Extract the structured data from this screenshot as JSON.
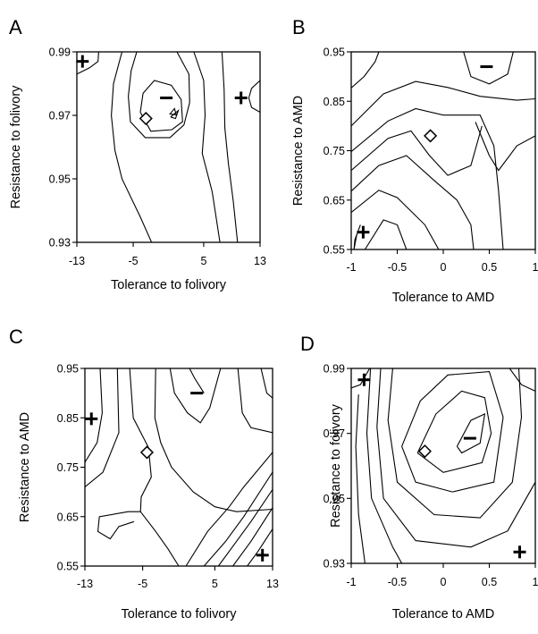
{
  "chart_data": [
    {
      "panel": "A",
      "type": "contour",
      "xlabel": "Tolerance to folivory",
      "ylabel": "Resistance to folivory",
      "xlim": [
        -13,
        13
      ],
      "ylim": [
        0.93,
        0.99
      ],
      "xticks": [
        "-13",
        "-5",
        "5",
        "13"
      ],
      "xtick_values": [
        -13,
        -5,
        5,
        13
      ],
      "yticks": [
        "0.93",
        "0.95",
        "0.97",
        "0.99"
      ],
      "ytick_values": [
        0.93,
        0.95,
        0.97,
        0.99
      ],
      "markers": [
        {
          "symbol": "+",
          "label": "+",
          "x": -12.2,
          "y": 0.987
        },
        {
          "symbol": "+",
          "label": "+",
          "x": 10.3,
          "y": 0.9755
        },
        {
          "symbol": "-",
          "label": "−",
          "x": -0.3,
          "y": 0.9755
        },
        {
          "symbol": "diamond",
          "x": -3.2,
          "y": 0.969
        },
        {
          "symbol": "triangle",
          "x": 0.6,
          "y": 0.971
        }
      ],
      "contours": [
        [
          [
            -13,
            0.983
          ],
          [
            -11.2,
            0.985
          ],
          [
            -10,
            0.987
          ],
          [
            -9.9,
            0.99
          ]
        ],
        [
          [
            -4.5,
            0.99
          ],
          [
            -5.3,
            0.984
          ],
          [
            -5.7,
            0.976
          ],
          [
            -5.4,
            0.968
          ],
          [
            -3.3,
            0.963
          ],
          [
            0.2,
            0.963
          ],
          [
            2.2,
            0.967
          ],
          [
            3,
            0.974
          ],
          [
            2.9,
            0.983
          ],
          [
            1.2,
            0.99
          ]
        ],
        [
          [
            -4,
            0.971
          ],
          [
            -3.6,
            0.977
          ],
          [
            -2,
            0.981
          ],
          [
            0.4,
            0.9795
          ],
          [
            1.8,
            0.975
          ],
          [
            2,
            0.968
          ],
          [
            0.5,
            0.9655
          ],
          [
            -2.5,
            0.965
          ],
          [
            -4,
            0.971
          ]
        ],
        [
          [
            0.3,
            0.9695
          ],
          [
            1.4,
            0.9715
          ],
          [
            1,
            0.969
          ],
          [
            0.3,
            0.9695
          ]
        ],
        [
          [
            3.6,
            0.99
          ],
          [
            5,
            0.981
          ],
          [
            5.2,
            0.97
          ],
          [
            4.8,
            0.958
          ],
          [
            6.2,
            0.946
          ],
          [
            7.3,
            0.93
          ]
        ],
        [
          [
            7.6,
            0.99
          ],
          [
            7.9,
            0.978
          ],
          [
            8,
            0.966
          ],
          [
            8.5,
            0.955
          ],
          [
            9.2,
            0.943
          ],
          [
            9.8,
            0.93
          ]
        ],
        [
          [
            13,
            0.981
          ],
          [
            11.8,
            0.9785
          ],
          [
            11.4,
            0.9755
          ],
          [
            11.8,
            0.9725
          ],
          [
            13,
            0.971
          ]
        ],
        [
          [
            -6.6,
            0.99
          ],
          [
            -7.8,
            0.98
          ],
          [
            -8.1,
            0.97
          ],
          [
            -7.6,
            0.959
          ],
          [
            -6.6,
            0.95
          ],
          [
            -4,
            0.938
          ],
          [
            -2.4,
            0.93
          ]
        ]
      ]
    },
    {
      "panel": "B",
      "type": "contour",
      "xlabel": "Tolerance to AMD",
      "ylabel": "Resistance to AMD",
      "xlim": [
        -1,
        1
      ],
      "ylim": [
        0.55,
        0.95
      ],
      "xticks": [
        "-1",
        "-0.5",
        "0",
        "0.5",
        "1"
      ],
      "xtick_values": [
        -1,
        -0.5,
        0,
        0.5,
        1
      ],
      "yticks": [
        "0.55",
        "0.65",
        "0.75",
        "0.85",
        "0.95"
      ],
      "ytick_values": [
        0.55,
        0.65,
        0.75,
        0.85,
        0.95
      ],
      "markers": [
        {
          "symbol": "-",
          "label": "−",
          "x": 0.47,
          "y": 0.92
        },
        {
          "symbol": "diamond",
          "x": -0.14,
          "y": 0.78
        },
        {
          "symbol": "+",
          "label": "+",
          "x": -0.87,
          "y": 0.585
        }
      ],
      "contours": [
        [
          [
            -1,
            0.877
          ],
          [
            -0.86,
            0.9
          ],
          [
            -0.74,
            0.93
          ],
          [
            -0.7,
            0.95
          ]
        ],
        [
          [
            0.22,
            0.95
          ],
          [
            0.3,
            0.9
          ],
          [
            0.5,
            0.885
          ],
          [
            0.7,
            0.905
          ],
          [
            0.76,
            0.95
          ]
        ],
        [
          [
            -0.97,
            0.55
          ],
          [
            -0.96,
            0.57
          ],
          [
            -0.9,
            0.6
          ],
          [
            -0.94,
            0.58
          ],
          [
            -0.97,
            0.55
          ]
        ],
        [
          [
            -1,
            0.8
          ],
          [
            -0.65,
            0.865
          ],
          [
            -0.3,
            0.89
          ],
          [
            0.05,
            0.878
          ],
          [
            0.4,
            0.86
          ],
          [
            0.8,
            0.852
          ],
          [
            1,
            0.855
          ]
        ],
        [
          [
            -1,
            0.748
          ],
          [
            -0.6,
            0.81
          ],
          [
            -0.3,
            0.835
          ],
          [
            0,
            0.822
          ],
          [
            0.4,
            0.822
          ],
          [
            0.55,
            0.76
          ],
          [
            0.6,
            0.67
          ],
          [
            0.65,
            0.55
          ]
        ],
        [
          [
            0.35,
            0.808
          ],
          [
            0.5,
            0.74
          ],
          [
            0.6,
            0.71
          ],
          [
            0.8,
            0.76
          ],
          [
            1,
            0.78
          ]
        ],
        [
          [
            -1,
            0.71
          ],
          [
            -0.6,
            0.775
          ],
          [
            -0.35,
            0.79
          ],
          [
            -0.15,
            0.74
          ],
          [
            0.05,
            0.7
          ],
          [
            0.3,
            0.72
          ],
          [
            0.42,
            0.8
          ]
        ],
        [
          [
            -1,
            0.668
          ],
          [
            -0.7,
            0.72
          ],
          [
            -0.4,
            0.74
          ],
          [
            -0.1,
            0.69
          ],
          [
            0.15,
            0.65
          ],
          [
            0.3,
            0.6
          ],
          [
            0.33,
            0.55
          ]
        ],
        [
          [
            -1,
            0.625
          ],
          [
            -0.7,
            0.67
          ],
          [
            -0.5,
            0.655
          ],
          [
            -0.2,
            0.6
          ],
          [
            -0.05,
            0.55
          ]
        ],
        [
          [
            -0.85,
            0.55
          ],
          [
            -0.65,
            0.61
          ],
          [
            -0.5,
            0.6
          ],
          [
            -0.4,
            0.55
          ]
        ]
      ]
    },
    {
      "panel": "C",
      "type": "contour",
      "xlabel": "Tolerance to folivory",
      "ylabel": "Resistance to AMD",
      "xlim": [
        -13,
        13
      ],
      "ylim": [
        0.55,
        0.95
      ],
      "xticks": [
        "-13",
        "-5",
        "5",
        "13"
      ],
      "xtick_values": [
        -13,
        -5,
        5,
        13
      ],
      "yticks": [
        "0.55",
        "0.65",
        "0.75",
        "0.85",
        "0.95"
      ],
      "ytick_values": [
        0.55,
        0.65,
        0.75,
        0.85,
        0.95
      ],
      "markers": [
        {
          "symbol": "+",
          "label": "+",
          "x": -12.1,
          "y": 0.848
        },
        {
          "symbol": "-",
          "label": "−",
          "x": 2.5,
          "y": 0.9
        },
        {
          "symbol": "diamond",
          "x": -4.4,
          "y": 0.78
        },
        {
          "symbol": "+",
          "label": "+",
          "x": 11.6,
          "y": 0.572
        }
      ],
      "contours": [
        [
          [
            -13,
            0.76
          ],
          [
            -11.3,
            0.8
          ],
          [
            -10.6,
            0.86
          ],
          [
            -10.9,
            0.95
          ]
        ],
        [
          [
            -1.2,
            0.95
          ],
          [
            -0.6,
            0.9
          ],
          [
            1.2,
            0.86
          ],
          [
            3,
            0.84
          ],
          [
            4.3,
            0.87
          ],
          [
            5.8,
            0.95
          ]
        ],
        [
          [
            -13,
            0.71
          ],
          [
            -10.5,
            0.74
          ],
          [
            -8.3,
            0.82
          ],
          [
            -8.5,
            0.95
          ]
        ],
        [
          [
            -6.8,
            0.95
          ],
          [
            -6.3,
            0.85
          ],
          [
            -4.2,
            0.79
          ],
          [
            -3.8,
            0.73
          ],
          [
            -5.2,
            0.69
          ],
          [
            -5.3,
            0.66
          ],
          [
            -7,
            0.66
          ],
          [
            -11,
            0.65
          ],
          [
            -11.2,
            0.62
          ],
          [
            -9.5,
            0.605
          ],
          [
            -8.3,
            0.63
          ],
          [
            -6.2,
            0.64
          ]
        ],
        [
          [
            -3.2,
            0.95
          ],
          [
            -3.3,
            0.85
          ],
          [
            -2.5,
            0.8
          ],
          [
            -1,
            0.75
          ],
          [
            2,
            0.7
          ],
          [
            5,
            0.67
          ],
          [
            8,
            0.66
          ],
          [
            13,
            0.665
          ]
        ],
        [
          [
            1.5,
            0.95
          ],
          [
            2.2,
            0.93
          ],
          [
            3.5,
            0.9
          ]
        ],
        [
          [
            -5.3,
            0.66
          ],
          [
            -3.2,
            0.62
          ],
          [
            -1.5,
            0.585
          ],
          [
            0,
            0.55
          ]
        ],
        [
          [
            1,
            0.55
          ],
          [
            4,
            0.62
          ],
          [
            7,
            0.67
          ],
          [
            9,
            0.71
          ],
          [
            13,
            0.78
          ]
        ],
        [
          [
            3.5,
            0.55
          ],
          [
            6.5,
            0.6
          ],
          [
            9,
            0.65
          ],
          [
            13,
            0.74
          ]
        ],
        [
          [
            5.5,
            0.55
          ],
          [
            8,
            0.6
          ],
          [
            10,
            0.64
          ],
          [
            13,
            0.705
          ]
        ],
        [
          [
            7.5,
            0.55
          ],
          [
            10,
            0.6
          ],
          [
            13,
            0.668
          ]
        ],
        [
          [
            9.5,
            0.55
          ],
          [
            11,
            0.58
          ],
          [
            13,
            0.625
          ]
        ],
        [
          [
            8.2,
            0.95
          ],
          [
            8.8,
            0.86
          ],
          [
            10,
            0.83
          ],
          [
            13,
            0.82
          ]
        ],
        [
          [
            11.4,
            0.95
          ],
          [
            12.2,
            0.9
          ],
          [
            13,
            0.89
          ]
        ]
      ]
    },
    {
      "panel": "D",
      "type": "contour",
      "xlabel": "Tolerance to AMD",
      "ylabel": "Resistance to folivory",
      "xlim": [
        -1,
        1
      ],
      "ylim": [
        0.93,
        0.99
      ],
      "xticks": [
        "-1",
        "-0.5",
        "0",
        "0.5",
        "1"
      ],
      "xtick_values": [
        -1,
        -0.5,
        0,
        0.5,
        1
      ],
      "yticks": [
        "0.93",
        "0.95",
        "0.97",
        "0.99"
      ],
      "ytick_values": [
        0.93,
        0.95,
        0.97,
        0.99
      ],
      "markers": [
        {
          "symbol": "+",
          "label": "+",
          "x": -0.86,
          "y": 0.9865
        },
        {
          "symbol": "-",
          "label": "−",
          "x": 0.29,
          "y": 0.9685
        },
        {
          "symbol": "diamond",
          "x": -0.2,
          "y": 0.9645
        },
        {
          "symbol": "+",
          "label": "+",
          "x": 0.83,
          "y": 0.9335
        }
      ],
      "contours": [
        [
          [
            -1,
            0.984
          ],
          [
            -0.9,
            0.985
          ],
          [
            -0.8,
            0.99
          ]
        ],
        [
          [
            0.15,
            0.966
          ],
          [
            0.3,
            0.974
          ],
          [
            0.45,
            0.976
          ],
          [
            0.4,
            0.967
          ],
          [
            0.2,
            0.964
          ],
          [
            0.15,
            0.966
          ]
        ],
        [
          [
            -0.28,
            0.964
          ],
          [
            -0.08,
            0.976
          ],
          [
            0.2,
            0.983
          ],
          [
            0.45,
            0.981
          ],
          [
            0.52,
            0.97
          ],
          [
            0.42,
            0.961
          ],
          [
            0,
            0.958
          ],
          [
            -0.28,
            0.964
          ]
        ],
        [
          [
            -0.45,
            0.966
          ],
          [
            -0.25,
            0.98
          ],
          [
            0.05,
            0.988
          ],
          [
            0.5,
            0.989
          ],
          [
            0.65,
            0.975
          ],
          [
            0.55,
            0.955
          ],
          [
            0.1,
            0.952
          ],
          [
            -0.3,
            0.955
          ],
          [
            -0.45,
            0.966
          ]
        ],
        [
          [
            -0.55,
            0.99
          ],
          [
            -0.6,
            0.974
          ],
          [
            -0.5,
            0.955
          ],
          [
            -0.1,
            0.945
          ],
          [
            0.4,
            0.944
          ],
          [
            0.75,
            0.955
          ],
          [
            0.85,
            0.975
          ],
          [
            0.82,
            0.99
          ]
        ],
        [
          [
            -0.68,
            0.99
          ],
          [
            -0.72,
            0.972
          ],
          [
            -0.65,
            0.95
          ],
          [
            -0.3,
            0.937
          ],
          [
            0.3,
            0.935
          ],
          [
            0.7,
            0.94
          ],
          [
            1,
            0.955
          ]
        ],
        [
          [
            -0.79,
            0.99
          ],
          [
            -0.83,
            0.97
          ],
          [
            -0.78,
            0.95
          ],
          [
            -0.55,
            0.935
          ],
          [
            -0.45,
            0.93
          ]
        ],
        [
          [
            -0.92,
            0.982
          ],
          [
            -0.95,
            0.966
          ],
          [
            -0.92,
            0.945
          ],
          [
            -0.85,
            0.93
          ]
        ],
        [
          [
            0.72,
            0.99
          ],
          [
            0.85,
            0.985
          ],
          [
            1,
            0.983
          ]
        ]
      ]
    }
  ]
}
